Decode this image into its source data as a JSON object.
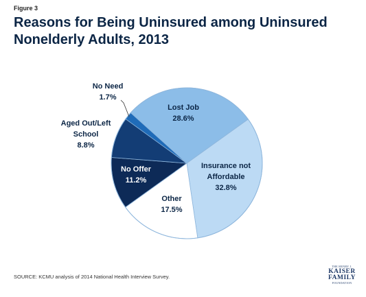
{
  "figure_label": "Figure 3",
  "title": "Reasons for Being Uninsured among Uninsured Nonelderly Adults, 2013",
  "source": "SOURCE: KCMU analysis of 2014 National Health Interview Survey.",
  "logo": {
    "top": "THE HENRY J.",
    "line1": "KAISER",
    "line2": "FAMILY",
    "bottom": "FOUNDATION"
  },
  "chart_data": {
    "type": "pie",
    "title": "Reasons for Being Uninsured among Uninsured Nonelderly Adults, 2013",
    "slices": [
      {
        "label": "Lost Job",
        "value": 28.6,
        "value_label": "28.6%",
        "color": "#8cbde8"
      },
      {
        "label": "Insurance not Affordable",
        "value": 32.8,
        "value_label": "32.8%",
        "color": "#bcdaf4"
      },
      {
        "label": "Other",
        "value": 17.5,
        "value_label": "17.5%",
        "color": "#ffffff"
      },
      {
        "label": "No Offer",
        "value": 11.2,
        "value_label": "11.2%",
        "color": "#0d2a57"
      },
      {
        "label": "Aged Out/Left School",
        "value": 8.8,
        "value_label": "8.8%",
        "color": "#133d75"
      },
      {
        "label": "No Need",
        "value": 1.7,
        "value_label": "1.7%",
        "color": "#1f6bb8"
      }
    ]
  }
}
